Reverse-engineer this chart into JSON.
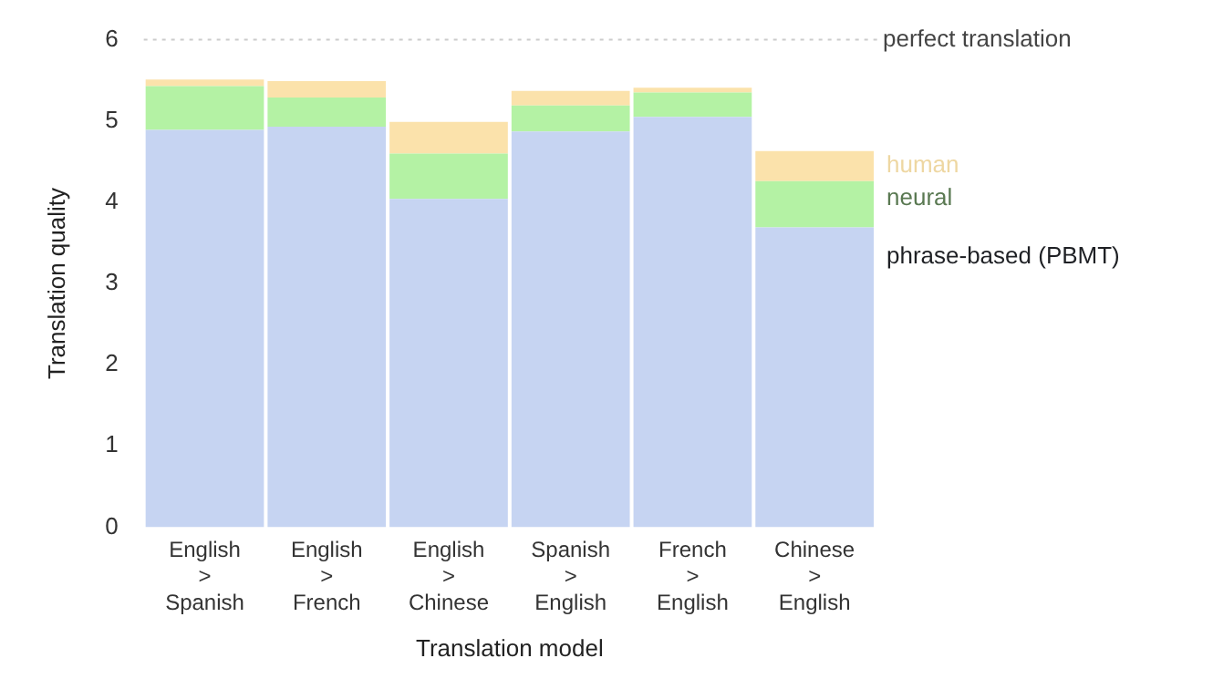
{
  "chart_data": {
    "type": "bar",
    "stacked": true,
    "xlabel": "Translation model",
    "ylabel": "Translation quality",
    "categories": [
      "English > Spanish",
      "English > French",
      "English > Chinese",
      "Spanish > English",
      "French > English",
      "Chinese > English"
    ],
    "series": [
      {
        "name": "phrase-based (PBMT)",
        "color": "#c6d4f2",
        "values": [
          4.89,
          4.93,
          4.04,
          4.87,
          5.05,
          3.69
        ]
      },
      {
        "name": "neural",
        "color": "#b4f2a4",
        "values": [
          0.54,
          0.36,
          0.56,
          0.32,
          0.3,
          0.57
        ]
      },
      {
        "name": "human",
        "color": "#fbe2ab",
        "values": [
          0.08,
          0.2,
          0.39,
          0.18,
          0.06,
          0.37
        ]
      }
    ],
    "ylim": [
      0,
      6
    ],
    "yticks": [
      0,
      1,
      2,
      3,
      4,
      5,
      6
    ],
    "grid": false,
    "ref_lines": [
      {
        "axis": "y",
        "value": 6,
        "label": "perfect translation",
        "color": "#cccccc",
        "line_style": "dotted"
      }
    ]
  }
}
